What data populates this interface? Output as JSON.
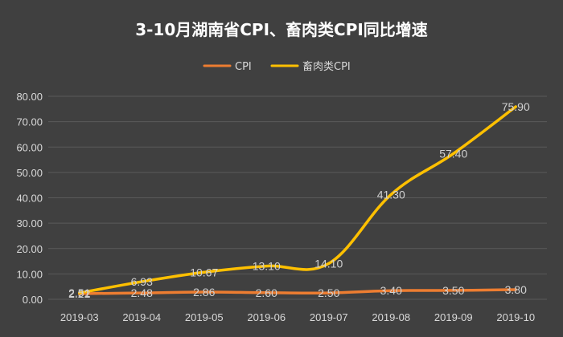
{
  "chart_data": {
    "type": "line",
    "title": "3-10月湖南省CPI、畜肉类CPI同比增速",
    "categories": [
      "2019-03",
      "2019-04",
      "2019-05",
      "2019-06",
      "2019-07",
      "2019-08",
      "2019-09",
      "2019-10"
    ],
    "series": [
      {
        "name": "CPI",
        "color": "#ed7d31",
        "values": [
          2.22,
          2.48,
          2.86,
          2.6,
          2.5,
          3.4,
          3.5,
          3.8
        ],
        "labels": [
          "2.22",
          "2.48",
          "2.86",
          "2.60",
          "2.50",
          "3.40",
          "3.50",
          "3.80"
        ]
      },
      {
        "name": "畜肉类CPI",
        "color": "#ffc000",
        "values": [
          2.51,
          6.93,
          10.67,
          13.1,
          14.1,
          41.3,
          57.4,
          75.9
        ],
        "labels": [
          "2.51",
          "6.93",
          "10.67",
          "13.10",
          "14.10",
          "41.30",
          "57.40",
          "75.90"
        ]
      }
    ],
    "yticks": [
      "0.00",
      "10.00",
      "20.00",
      "30.00",
      "40.00",
      "50.00",
      "60.00",
      "70.00",
      "80.00"
    ],
    "ylim": [
      0,
      80
    ],
    "xlabel": "",
    "ylabel": "",
    "grid": true,
    "legend_position": "top-center"
  }
}
